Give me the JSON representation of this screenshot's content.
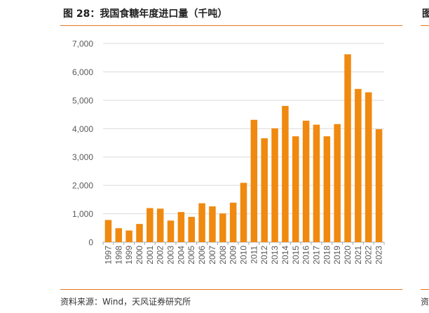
{
  "header": {
    "title": "图 28：我国食糖年度进口量（千吨）",
    "right_title_fragment": "图"
  },
  "footer": {
    "source": "资料来源：Wind，天风证券研究所",
    "right_source_fragment": "资"
  },
  "colors": {
    "bar": "#f0890f",
    "rule": "#e8761c",
    "grid": "#d9d9d9",
    "axis": "#a6a6a6",
    "text": "#595959"
  },
  "chart_data": {
    "type": "bar",
    "categories": [
      "1997",
      "1998",
      "1999",
      "2000",
      "2001",
      "2002",
      "2003",
      "2004",
      "2005",
      "2006",
      "2007",
      "2008",
      "2009",
      "2010",
      "2011",
      "2012",
      "2013",
      "2014",
      "2015",
      "2016",
      "2017",
      "2018",
      "2019",
      "2020",
      "2021",
      "2022",
      "2023"
    ],
    "values": [
      780,
      490,
      410,
      640,
      1200,
      1180,
      760,
      1060,
      890,
      1370,
      1260,
      1010,
      1390,
      2090,
      4310,
      3660,
      4010,
      4800,
      3730,
      4280,
      4140,
      3730,
      4160,
      6620,
      5400,
      5280,
      3980
    ],
    "ylim": [
      0,
      7000
    ],
    "yticks": [
      0,
      1000,
      2000,
      3000,
      4000,
      5000,
      6000,
      7000
    ],
    "ytick_labels": [
      "0",
      "1,000",
      "2,000",
      "3,000",
      "4,000",
      "5,000",
      "6,000",
      "7,000"
    ],
    "grid": true
  }
}
